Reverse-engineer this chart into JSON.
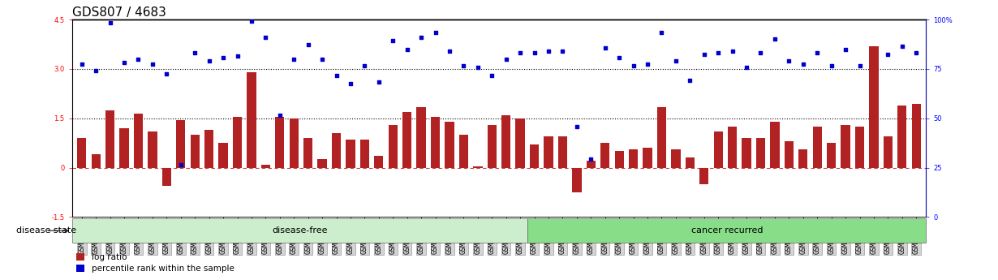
{
  "title": "GDS807 / 4683",
  "samples": [
    "GSM22369",
    "GSM22374",
    "GSM22381",
    "GSM22382",
    "GSM22384",
    "GSM22385",
    "GSM22387",
    "GSM22388",
    "GSM22390",
    "GSM22392",
    "GSM22393",
    "GSM22394",
    "GSM22397",
    "GSM22400",
    "GSM22401",
    "GSM22403",
    "GSM22404",
    "GSM22405",
    "GSM22406",
    "GSM22408",
    "GSM22409",
    "GSM22410",
    "GSM22413",
    "GSM22414",
    "GSM22417",
    "GSM22418",
    "GSM22419",
    "GSM22420",
    "GSM22421",
    "GSM22422",
    "GSM22423",
    "GSM22424",
    "GSM22365",
    "GSM22366",
    "GSM22367",
    "GSM22368",
    "GSM22370",
    "GSM22371",
    "GSM22372",
    "GSM22373",
    "GSM22375",
    "GSM22376",
    "GSM22377",
    "GSM22378",
    "GSM22379",
    "GSM22380",
    "GSM22383",
    "GSM22386",
    "GSM22389",
    "GSM22391",
    "GSM22395",
    "GSM22396",
    "GSM22398",
    "GSM22399",
    "GSM22402",
    "GSM22407",
    "GSM22411",
    "GSM22412",
    "GSM22415",
    "GSM22416"
  ],
  "log_ratio": [
    0.9,
    0.4,
    1.75,
    1.2,
    1.65,
    1.1,
    -0.55,
    1.45,
    1.0,
    1.15,
    0.75,
    1.55,
    2.9,
    0.08,
    1.55,
    1.5,
    0.9,
    0.25,
    1.05,
    0.85,
    0.85,
    0.35,
    1.3,
    1.7,
    1.85,
    1.55,
    1.4,
    1.0,
    0.05,
    1.3,
    1.6,
    1.5,
    0.7,
    0.95,
    0.95,
    -0.75,
    0.2,
    0.75,
    0.5,
    0.55,
    0.6,
    1.85,
    0.55,
    0.3,
    -0.5,
    1.1,
    1.25,
    0.9,
    0.9,
    1.4,
    0.8,
    0.55,
    1.25,
    0.75,
    1.3,
    1.25,
    3.7,
    0.95,
    1.9,
    1.95
  ],
  "percentile": [
    3.15,
    2.95,
    4.4,
    3.2,
    3.3,
    3.15,
    2.85,
    0.1,
    3.5,
    3.25,
    3.35,
    3.4,
    4.45,
    3.95,
    1.6,
    3.3,
    3.75,
    3.3,
    2.8,
    2.55,
    3.1,
    2.6,
    3.85,
    3.6,
    3.95,
    4.1,
    3.55,
    3.1,
    3.05,
    2.8,
    3.3,
    3.5,
    3.5,
    3.55,
    3.55,
    1.25,
    0.25,
    3.65,
    3.35,
    3.1,
    3.15,
    4.1,
    3.25,
    2.65,
    3.45,
    3.5,
    3.55,
    3.05,
    3.5,
    3.9,
    3.25,
    3.15,
    3.5,
    3.1,
    3.6,
    3.1,
    4.7,
    3.45,
    3.7,
    3.5
  ],
  "disease_free_count": 32,
  "bar_color": "#b22222",
  "dot_color": "#0000cc",
  "bar_width": 0.65,
  "ylim_left": [
    -1.5,
    4.5
  ],
  "ylim_right": [
    0,
    100
  ],
  "yticks_left": [
    -1.5,
    0.0,
    1.5,
    3.0,
    4.5
  ],
  "ytick_labels_left": [
    "-1.5",
    "0",
    "1.5",
    "3.0",
    "4.5"
  ],
  "yticks_right": [
    0,
    25,
    50,
    75,
    100
  ],
  "disease_free_label": "disease-free",
  "cancer_recurred_label": "cancer recurred",
  "legend_log_ratio": "log ratio",
  "legend_percentile": "percentile rank within the sample",
  "disease_state_label": "disease state",
  "bg_disease_free": "#cceecc",
  "bg_cancer": "#88dd88",
  "zero_line_color": "#cc4444",
  "title_fontsize": 11,
  "tick_fontsize": 6.0,
  "axis_label_fontsize": 8
}
